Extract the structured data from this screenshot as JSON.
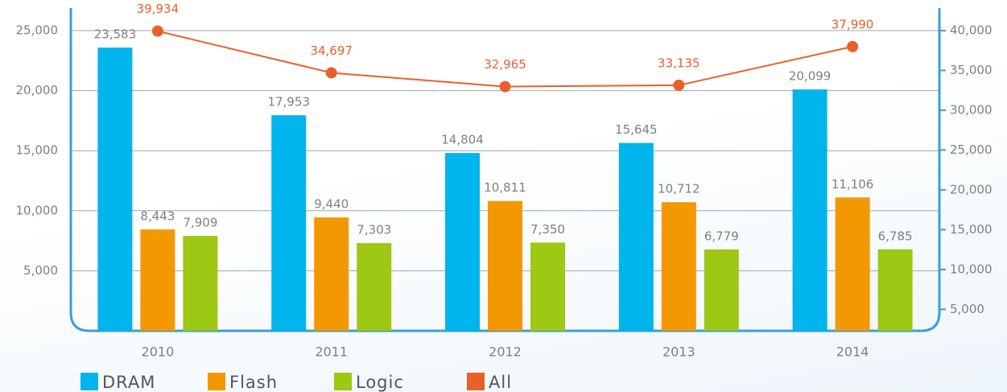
{
  "chart_data": {
    "type": "bar",
    "categories": [
      "2010",
      "2011",
      "2012",
      "2013",
      "2014"
    ],
    "series": [
      {
        "name": "DRAM",
        "color": "#00b4ec",
        "values": [
          23583,
          17953,
          14804,
          15645,
          20099
        ],
        "value_labels": [
          "23,583",
          "17,953",
          "14,804",
          "15,645",
          "20,099"
        ]
      },
      {
        "name": "Flash",
        "color": "#f39800",
        "values": [
          8443,
          9440,
          10811,
          10712,
          11106
        ],
        "value_labels": [
          "8,443",
          "9,440",
          "10,811",
          "10,712",
          "11,106"
        ]
      },
      {
        "name": "Logic",
        "color": "#9dc814",
        "values": [
          7909,
          7303,
          7350,
          6779,
          6785
        ],
        "value_labels": [
          "7,909",
          "7,303",
          "7,350",
          "6,779",
          "6,785"
        ]
      },
      {
        "name": "All",
        "color": "#e8602c",
        "type": "line",
        "axis": "y2",
        "values": [
          39934,
          34697,
          32965,
          33135,
          37990
        ],
        "value_labels": [
          "39,934",
          "34,697",
          "32,965",
          "33,135",
          "37,990"
        ]
      }
    ],
    "ylim": [
      0,
      25000
    ],
    "yticks": [
      {
        "value": 5000,
        "label": "5,000"
      },
      {
        "value": 10000,
        "label": "10,000"
      },
      {
        "value": 15000,
        "label": "15,000"
      },
      {
        "value": 20000,
        "label": "20,000"
      },
      {
        "value": 25000,
        "label": "25,000"
      }
    ],
    "y2lim": [
      2300,
      40000
    ],
    "y2ticks": [
      {
        "value": 5000,
        "label": "5,000"
      },
      {
        "value": 10000,
        "label": "10,000"
      },
      {
        "value": 15000,
        "label": "15,000"
      },
      {
        "value": 20000,
        "label": "20,000"
      },
      {
        "value": 25000,
        "label": "25,000"
      },
      {
        "value": 30000,
        "label": "30,000"
      },
      {
        "value": 35000,
        "label": "35,000"
      },
      {
        "value": 40000,
        "label": "40,000"
      }
    ],
    "grid": true,
    "legend": "bottom"
  }
}
